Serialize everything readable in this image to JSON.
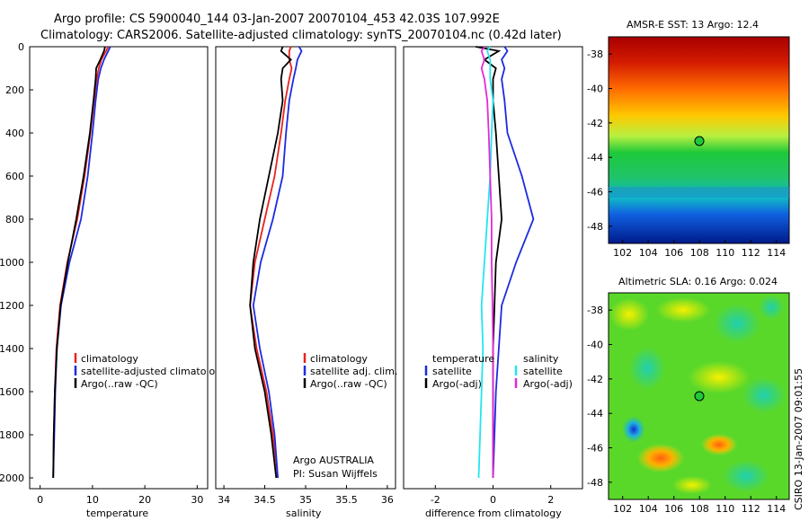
{
  "title_line1": "Argo profile: CS 5900040_144 03-Jan-2007 20070104_453 42.03S 107.992E",
  "title_line2": "Climatology: CARS2006. Satellite-adjusted climatology: synTS_20070104.nc (0.42d later)",
  "colors": {
    "climatology": "#e8231f",
    "satellite": "#1b2be0",
    "argo": "#000000",
    "cyan": "#22e6f0",
    "magenta": "#e22ad8"
  },
  "depth_ticks": [
    "0",
    "200",
    "400",
    "600",
    "800",
    "1000",
    "1200",
    "1400",
    "1600",
    "1800",
    "2000"
  ],
  "panels": {
    "temperature": {
      "xlabel": "temperature",
      "xticks": [
        "0",
        "10",
        "20",
        "30"
      ],
      "legend": [
        "climatology",
        "satellite-adjusted climatology",
        "Argo(..raw -QC)"
      ]
    },
    "salinity": {
      "xlabel": "salinity",
      "xticks": [
        "34",
        "34.5",
        "35",
        "35.5",
        "36"
      ],
      "legend": [
        "climatology",
        "satellite adj. clim.",
        "Argo(..raw -QC)"
      ],
      "note1": "Argo AUSTRALIA",
      "note2": "PI: Susan Wijffels"
    },
    "difference": {
      "xlabel": "difference from climatology",
      "xticks": [
        "-2",
        "0",
        "2"
      ],
      "legend_t_head": "temperature",
      "legend_t": [
        "satellite",
        "Argo(-adj)"
      ],
      "legend_s_head": "salinity",
      "legend_s": [
        "satellite",
        "Argo(-adj)"
      ]
    }
  },
  "maps": {
    "sst": {
      "title": "AMSR-E SST: 13 Argo: 12.4",
      "yticks": [
        "-38",
        "-40",
        "-42",
        "-44",
        "-46",
        "-48"
      ],
      "xticks": [
        "102",
        "104",
        "106",
        "108",
        "110",
        "112",
        "114"
      ]
    },
    "sla": {
      "title": "Altimetric SLA: 0.16 Argo: 0.024",
      "yticks": [
        "-38",
        "-40",
        "-42",
        "-44",
        "-46",
        "-48"
      ],
      "xticks": [
        "102",
        "104",
        "106",
        "108",
        "110",
        "112",
        "114"
      ]
    }
  },
  "stamp": "CSIRO 13-Jan-2007 09:01:55",
  "chart_data": [
    {
      "type": "line",
      "name": "temperature",
      "xlabel": "temperature",
      "ylabel": "depth",
      "xlim": [
        -2,
        32
      ],
      "ylim": [
        2050,
        0
      ],
      "depth": [
        0,
        20,
        60,
        100,
        150,
        250,
        400,
        600,
        800,
        1000,
        1200,
        1400,
        1600,
        1800,
        2000
      ],
      "series": [
        {
          "name": "climatology",
          "values": [
            13.0,
            12.6,
            11.7,
            11.2,
            10.8,
            10.3,
            9.6,
            8.5,
            7.1,
            5.2,
            3.8,
            3.1,
            2.8,
            2.6,
            2.5
          ]
        },
        {
          "name": "satellite-adjusted climatology",
          "values": [
            13.4,
            13.0,
            12.2,
            11.6,
            11.1,
            10.6,
            10.0,
            9.1,
            7.8,
            5.6,
            4.0,
            3.2,
            2.9,
            2.7,
            2.5
          ]
        },
        {
          "name": "Argo(..raw -QC)",
          "values": [
            12.4,
            12.2,
            11.5,
            10.7,
            10.6,
            10.2,
            9.5,
            8.3,
            6.9,
            5.3,
            3.9,
            3.2,
            2.8,
            2.6,
            2.5
          ]
        }
      ]
    },
    {
      "type": "line",
      "name": "salinity",
      "xlabel": "salinity",
      "ylabel": "depth",
      "xlim": [
        33.9,
        36.1
      ],
      "ylim": [
        2050,
        0
      ],
      "depth": [
        0,
        20,
        60,
        100,
        150,
        250,
        400,
        600,
        800,
        1000,
        1200,
        1400,
        1600,
        1800,
        2000
      ],
      "series": [
        {
          "name": "climatology",
          "values": [
            34.82,
            34.8,
            34.8,
            34.83,
            34.8,
            34.75,
            34.7,
            34.62,
            34.5,
            34.38,
            34.32,
            34.4,
            34.52,
            34.6,
            34.66
          ]
        },
        {
          "name": "satellite adj. clim.",
          "values": [
            34.92,
            34.95,
            34.9,
            34.88,
            34.85,
            34.8,
            34.76,
            34.72,
            34.6,
            34.45,
            34.36,
            34.44,
            34.55,
            34.62,
            34.66
          ]
        },
        {
          "name": "Argo(..raw -QC)",
          "values": [
            34.72,
            34.7,
            34.82,
            34.72,
            34.7,
            34.72,
            34.66,
            34.55,
            34.44,
            34.36,
            34.32,
            34.38,
            34.5,
            34.58,
            34.64
          ]
        }
      ]
    },
    {
      "type": "line",
      "name": "difference from climatology",
      "xlabel": "difference from climatology",
      "ylabel": "depth",
      "xlim": [
        -3.1,
        3.1
      ],
      "ylim": [
        2050,
        0
      ],
      "depth": [
        0,
        20,
        60,
        100,
        150,
        250,
        400,
        600,
        800,
        1000,
        1200,
        1400,
        1600,
        1800,
        2000
      ],
      "series": [
        {
          "name": "temperature satellite",
          "values": [
            0.4,
            0.5,
            0.3,
            0.4,
            0.3,
            0.4,
            0.5,
            1.0,
            1.4,
            0.8,
            0.3,
            0.2,
            0.1,
            0.05,
            0.0
          ]
        },
        {
          "name": "temperature Argo(-adj)",
          "values": [
            -0.6,
            0.2,
            -0.3,
            0.1,
            0.0,
            0.0,
            0.1,
            0.2,
            0.3,
            0.1,
            0.05,
            0.0,
            0.0,
            0.0,
            0.0
          ]
        },
        {
          "name": "salinity satellite",
          "values": [
            -0.1,
            -0.2,
            -0.1,
            -0.1,
            -0.1,
            0.0,
            -0.05,
            -0.1,
            -0.2,
            -0.3,
            -0.4,
            -0.35,
            -0.4,
            -0.45,
            -0.5
          ]
        },
        {
          "name": "salinity Argo(-adj)",
          "values": [
            -0.3,
            -0.4,
            -0.3,
            -0.4,
            -0.3,
            -0.2,
            -0.15,
            -0.1,
            -0.05,
            -0.05,
            -0.02,
            0.0,
            0.0,
            0.0,
            0.0
          ]
        }
      ]
    }
  ]
}
